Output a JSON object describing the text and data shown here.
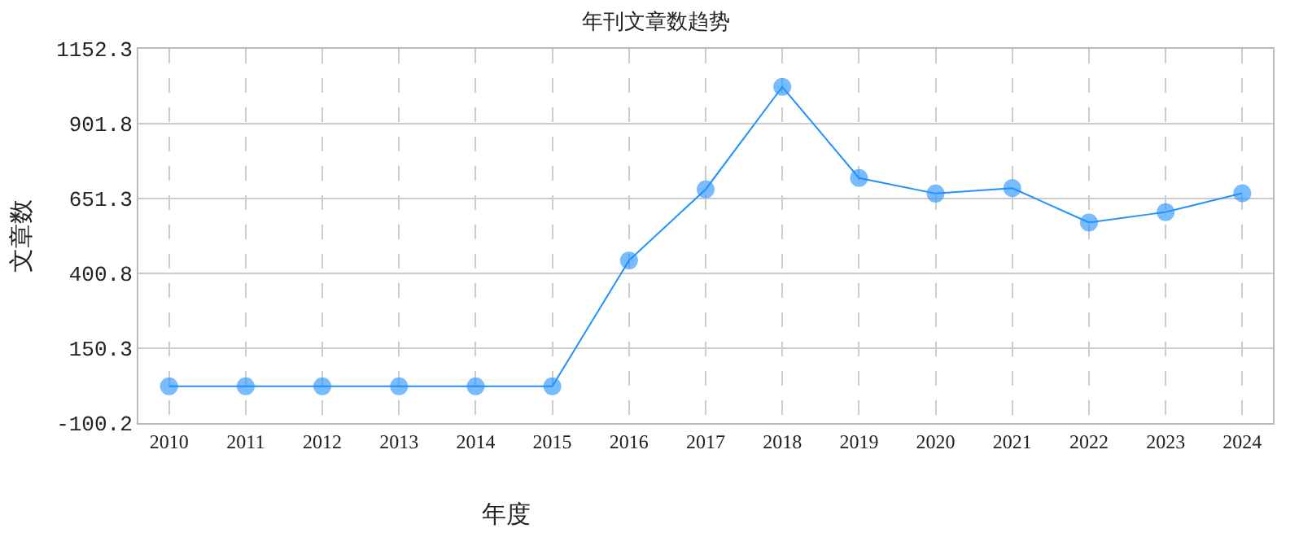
{
  "chart_data": {
    "type": "line",
    "title": "年刊文章数趋势",
    "xlabel": "年度",
    "ylabel": "文章数",
    "categories": [
      "2010",
      "2011",
      "2012",
      "2013",
      "2014",
      "2015",
      "2016",
      "2017",
      "2018",
      "2019",
      "2020",
      "2021",
      "2022",
      "2023",
      "2024"
    ],
    "series": [
      {
        "color": "#1e90ff",
        "values": [
          23,
          23,
          23,
          23,
          23,
          23,
          444,
          682,
          1025,
          720,
          668,
          686,
          571,
          606,
          669
        ]
      }
    ],
    "ylim": [
      -100.2,
      1152.3
    ],
    "yticks": [
      -100.2,
      150.3,
      400.8,
      651.3,
      901.8,
      1152.3
    ],
    "grid": true,
    "marker": "circle",
    "line_style": "solid"
  }
}
